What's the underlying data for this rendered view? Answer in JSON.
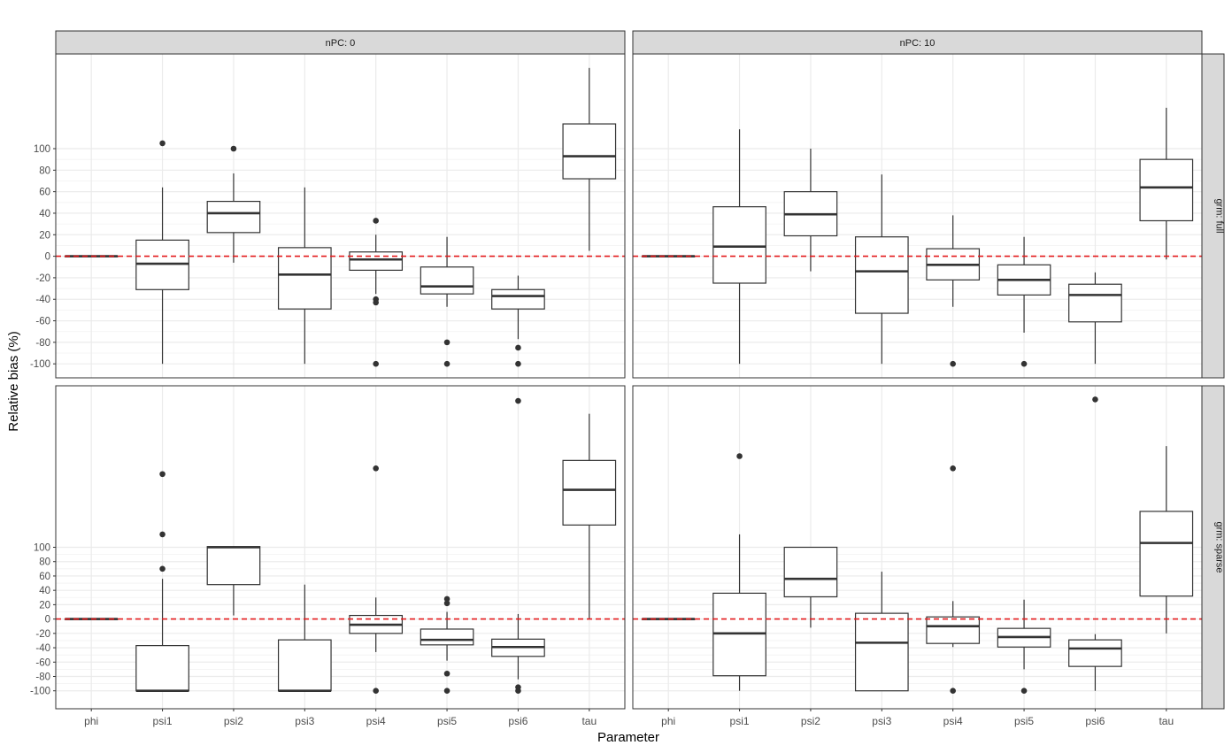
{
  "chart_data": {
    "type": "boxplot",
    "xlabel": "Parameter",
    "ylabel": "Relative bias (%)",
    "categories": [
      "phi",
      "psi1",
      "psi2",
      "psi3",
      "psi4",
      "psi5",
      "psi6",
      "tau"
    ],
    "yticks": [
      -100,
      -80,
      -60,
      -40,
      -20,
      0,
      20,
      40,
      60,
      80,
      100
    ],
    "reference_line": {
      "y": 0,
      "color": "#e41a1c",
      "style": "dashed"
    },
    "col_facets": [
      "nPC: 0",
      "nPC: 10"
    ],
    "row_facets": [
      "grm: full",
      "grm: sparse"
    ],
    "rows": [
      {
        "ylim": [
          -113,
          188
        ],
        "panels": [
          {
            "boxes": [
              {
                "q1": 0,
                "med": 0,
                "q3": 0,
                "lo": 0,
                "hi": 0,
                "out": []
              },
              {
                "q1": -31,
                "med": -7,
                "q3": 15,
                "lo": -100,
                "hi": 64,
                "out": [
                  105
                ]
              },
              {
                "q1": 22,
                "med": 40,
                "q3": 51,
                "lo": -6,
                "hi": 77,
                "out": [
                  100
                ]
              },
              {
                "q1": -49,
                "med": -17,
                "q3": 8,
                "lo": -100,
                "hi": 64,
                "out": []
              },
              {
                "q1": -13,
                "med": -3,
                "q3": 4,
                "lo": -35,
                "hi": 20,
                "out": [
                  33,
                  -40,
                  -43,
                  -100
                ]
              },
              {
                "q1": -35,
                "med": -28,
                "q3": -10,
                "lo": -47,
                "hi": 18,
                "out": [
                  -80,
                  -100
                ]
              },
              {
                "q1": -49,
                "med": -37,
                "q3": -31,
                "lo": -77,
                "hi": -18,
                "out": [
                  -85,
                  -100
                ]
              },
              {
                "q1": 72,
                "med": 93,
                "q3": 123,
                "lo": 5,
                "hi": 175,
                "out": []
              }
            ]
          },
          {
            "boxes": [
              {
                "q1": 0,
                "med": 0,
                "q3": 0,
                "lo": 0,
                "hi": 0,
                "out": []
              },
              {
                "q1": -25,
                "med": 9,
                "q3": 46,
                "lo": -100,
                "hi": 118,
                "out": []
              },
              {
                "q1": 19,
                "med": 39,
                "q3": 60,
                "lo": -14,
                "hi": 100,
                "out": []
              },
              {
                "q1": -53,
                "med": -14,
                "q3": 18,
                "lo": -100,
                "hi": 76,
                "out": []
              },
              {
                "q1": -22,
                "med": -8,
                "q3": 7,
                "lo": -47,
                "hi": 38,
                "out": [
                  -100
                ]
              },
              {
                "q1": -36,
                "med": -22,
                "q3": -8,
                "lo": -71,
                "hi": 18,
                "out": [
                  -100
                ]
              },
              {
                "q1": -61,
                "med": -36,
                "q3": -26,
                "lo": -100,
                "hi": -15,
                "out": []
              },
              {
                "q1": 33,
                "med": 64,
                "q3": 90,
                "lo": -3,
                "hi": 138,
                "out": []
              }
            ]
          }
        ]
      },
      {
        "ylim": [
          -125,
          325
        ],
        "panels": [
          {
            "boxes": [
              {
                "q1": 0,
                "med": 0,
                "q3": 0,
                "lo": 0,
                "hi": 0,
                "out": []
              },
              {
                "q1": -100,
                "med": -100,
                "q3": -37,
                "lo": -100,
                "hi": 56,
                "out": [
                  70,
                  118,
                  202
                ]
              },
              {
                "q1": 48,
                "med": 100,
                "q3": 101,
                "lo": 5,
                "hi": 101,
                "out": []
              },
              {
                "q1": -100,
                "med": -100,
                "q3": -29,
                "lo": -100,
                "hi": 48,
                "out": []
              },
              {
                "q1": -20,
                "med": -8,
                "q3": 5,
                "lo": -46,
                "hi": 30,
                "out": [
                  210,
                  -100
                ]
              },
              {
                "q1": -36,
                "med": -29,
                "q3": -14,
                "lo": -58,
                "hi": 10,
                "out": [
                  22,
                  28,
                  -76,
                  -100
                ]
              },
              {
                "q1": -52,
                "med": -39,
                "q3": -28,
                "lo": -84,
                "hi": 7,
                "out": [
                  304,
                  -95,
                  -100
                ]
              },
              {
                "q1": 131,
                "med": 180,
                "q3": 221,
                "lo": 0,
                "hi": 286,
                "out": []
              }
            ]
          },
          {
            "boxes": [
              {
                "q1": 0,
                "med": 0,
                "q3": 0,
                "lo": 0,
                "hi": 0,
                "out": []
              },
              {
                "q1": -79,
                "med": -20,
                "q3": 36,
                "lo": -100,
                "hi": 118,
                "out": [
                  227
                ]
              },
              {
                "q1": 31,
                "med": 56,
                "q3": 100,
                "lo": -12,
                "hi": 100,
                "out": []
              },
              {
                "q1": -100,
                "med": -33,
                "q3": 8,
                "lo": -100,
                "hi": 66,
                "out": []
              },
              {
                "q1": -34,
                "med": -10,
                "q3": 3,
                "lo": -39,
                "hi": 25,
                "out": [
                  210,
                  -100
                ]
              },
              {
                "q1": -39,
                "med": -25,
                "q3": -13,
                "lo": -70,
                "hi": 27,
                "out": [
                  -100
                ]
              },
              {
                "q1": -66,
                "med": -41,
                "q3": -29,
                "lo": -100,
                "hi": -21,
                "out": [
                  306
                ]
              },
              {
                "q1": 32,
                "med": 106,
                "q3": 150,
                "lo": -20,
                "hi": 241,
                "out": []
              }
            ]
          }
        ]
      }
    ]
  }
}
